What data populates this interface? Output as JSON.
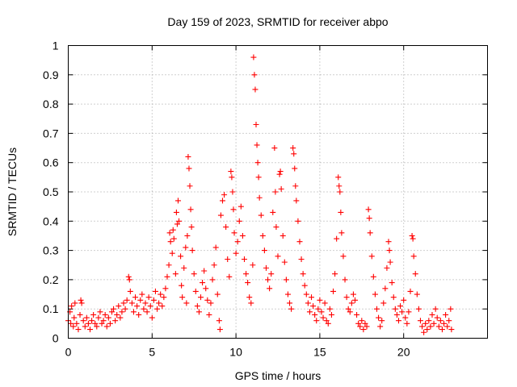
{
  "chart_data": {
    "type": "scatter",
    "title": "Day 159 of 2023, SRMTID for receiver abpo",
    "xlabel": "GPS time / hours",
    "ylabel": "SRMTID / TECUs",
    "xlim": [
      0,
      25
    ],
    "ylim": [
      0,
      1
    ],
    "xticks": [
      0,
      5,
      10,
      15,
      20
    ],
    "xtick_labels": [
      "0",
      "5",
      "10",
      "15",
      "20"
    ],
    "yticks": [
      0,
      0.1,
      0.2,
      0.3,
      0.4,
      0.5,
      0.6,
      0.7,
      0.8,
      0.9,
      1
    ],
    "ytick_labels": [
      "0",
      "0.1",
      "0.2",
      "0.3",
      "0.4",
      "0.5",
      "0.6",
      "0.7",
      "0.8",
      "0.9",
      "1"
    ],
    "grid": true,
    "marker": "plus",
    "series": [
      {
        "name": "SRMTID",
        "color": "#ff0000",
        "points": [
          [
            0.0,
            0.06
          ],
          [
            0.1,
            0.09
          ],
          [
            0.15,
            0.05
          ],
          [
            0.2,
            0.11
          ],
          [
            0.3,
            0.04
          ],
          [
            0.35,
            0.07
          ],
          [
            0.4,
            0.12
          ],
          [
            0.5,
            0.05
          ],
          [
            0.6,
            0.03
          ],
          [
            0.7,
            0.08
          ],
          [
            0.75,
            0.13
          ],
          [
            0.8,
            0.12
          ],
          [
            0.9,
            0.06
          ],
          [
            1.0,
            0.04
          ],
          [
            1.1,
            0.07
          ],
          [
            1.2,
            0.05
          ],
          [
            1.3,
            0.03
          ],
          [
            1.4,
            0.06
          ],
          [
            1.5,
            0.08
          ],
          [
            1.6,
            0.05
          ],
          [
            1.7,
            0.04
          ],
          [
            1.8,
            0.07
          ],
          [
            1.9,
            0.09
          ],
          [
            2.0,
            0.05
          ],
          [
            2.1,
            0.06
          ],
          [
            2.2,
            0.08
          ],
          [
            2.3,
            0.04
          ],
          [
            2.4,
            0.07
          ],
          [
            2.5,
            0.05
          ],
          [
            2.6,
            0.09
          ],
          [
            2.7,
            0.1
          ],
          [
            2.8,
            0.06
          ],
          [
            2.9,
            0.08
          ],
          [
            3.0,
            0.11
          ],
          [
            3.1,
            0.07
          ],
          [
            3.2,
            0.09
          ],
          [
            3.3,
            0.12
          ],
          [
            3.4,
            0.1
          ],
          [
            3.5,
            0.13
          ],
          [
            3.6,
            0.21
          ],
          [
            3.65,
            0.2
          ],
          [
            3.7,
            0.16
          ],
          [
            3.8,
            0.12
          ],
          [
            3.9,
            0.09
          ],
          [
            4.0,
            0.14
          ],
          [
            4.1,
            0.11
          ],
          [
            4.2,
            0.08
          ],
          [
            4.3,
            0.13
          ],
          [
            4.4,
            0.15
          ],
          [
            4.5,
            0.1
          ],
          [
            4.6,
            0.12
          ],
          [
            4.7,
            0.09
          ],
          [
            4.8,
            0.14
          ],
          [
            4.9,
            0.11
          ],
          [
            5.0,
            0.07
          ],
          [
            5.1,
            0.13
          ],
          [
            5.2,
            0.16
          ],
          [
            5.3,
            0.1
          ],
          [
            5.4,
            0.12
          ],
          [
            5.5,
            0.15
          ],
          [
            5.6,
            0.11
          ],
          [
            5.7,
            0.14
          ],
          [
            5.8,
            0.17
          ],
          [
            5.9,
            0.21
          ],
          [
            6.0,
            0.25
          ],
          [
            6.05,
            0.36
          ],
          [
            6.1,
            0.33
          ],
          [
            6.2,
            0.29
          ],
          [
            6.25,
            0.37
          ],
          [
            6.3,
            0.34
          ],
          [
            6.4,
            0.22
          ],
          [
            6.45,
            0.43
          ],
          [
            6.5,
            0.39
          ],
          [
            6.55,
            0.47
          ],
          [
            6.6,
            0.4
          ],
          [
            6.7,
            0.28
          ],
          [
            6.75,
            0.18
          ],
          [
            6.8,
            0.14
          ],
          [
            6.9,
            0.24
          ],
          [
            7.0,
            0.31
          ],
          [
            7.05,
            0.12
          ],
          [
            7.1,
            0.35
          ],
          [
            7.15,
            0.62
          ],
          [
            7.2,
            0.58
          ],
          [
            7.25,
            0.52
          ],
          [
            7.3,
            0.44
          ],
          [
            7.35,
            0.38
          ],
          [
            7.4,
            0.3
          ],
          [
            7.5,
            0.22
          ],
          [
            7.6,
            0.16
          ],
          [
            7.7,
            0.11
          ],
          [
            7.8,
            0.09
          ],
          [
            7.9,
            0.14
          ],
          [
            8.0,
            0.19
          ],
          [
            8.1,
            0.23
          ],
          [
            8.2,
            0.17
          ],
          [
            8.3,
            0.13
          ],
          [
            8.4,
            0.08
          ],
          [
            8.5,
            0.12
          ],
          [
            8.6,
            0.2
          ],
          [
            8.7,
            0.25
          ],
          [
            8.8,
            0.31
          ],
          [
            8.9,
            0.15
          ],
          [
            9.0,
            0.06
          ],
          [
            9.05,
            0.03
          ],
          [
            9.1,
            0.42
          ],
          [
            9.2,
            0.47
          ],
          [
            9.3,
            0.49
          ],
          [
            9.4,
            0.38
          ],
          [
            9.5,
            0.27
          ],
          [
            9.6,
            0.21
          ],
          [
            9.7,
            0.57
          ],
          [
            9.75,
            0.55
          ],
          [
            9.8,
            0.5
          ],
          [
            9.85,
            0.44
          ],
          [
            9.9,
            0.36
          ],
          [
            10.0,
            0.29
          ],
          [
            10.1,
            0.33
          ],
          [
            10.2,
            0.4
          ],
          [
            10.3,
            0.45
          ],
          [
            10.4,
            0.35
          ],
          [
            10.5,
            0.27
          ],
          [
            10.6,
            0.22
          ],
          [
            10.7,
            0.19
          ],
          [
            10.8,
            0.14
          ],
          [
            10.9,
            0.12
          ],
          [
            11.0,
            0.25
          ],
          [
            11.05,
            0.96
          ],
          [
            11.1,
            0.9
          ],
          [
            11.15,
            0.85
          ],
          [
            11.2,
            0.73
          ],
          [
            11.25,
            0.66
          ],
          [
            11.3,
            0.6
          ],
          [
            11.35,
            0.55
          ],
          [
            11.4,
            0.48
          ],
          [
            11.5,
            0.42
          ],
          [
            11.6,
            0.35
          ],
          [
            11.7,
            0.3
          ],
          [
            11.8,
            0.24
          ],
          [
            11.9,
            0.2
          ],
          [
            12.0,
            0.17
          ],
          [
            12.1,
            0.22
          ],
          [
            12.2,
            0.43
          ],
          [
            12.3,
            0.65
          ],
          [
            12.35,
            0.5
          ],
          [
            12.4,
            0.38
          ],
          [
            12.5,
            0.28
          ],
          [
            12.6,
            0.56
          ],
          [
            12.65,
            0.57
          ],
          [
            12.7,
            0.51
          ],
          [
            12.8,
            0.35
          ],
          [
            12.9,
            0.26
          ],
          [
            13.0,
            0.2
          ],
          [
            13.1,
            0.15
          ],
          [
            13.2,
            0.12
          ],
          [
            13.3,
            0.1
          ],
          [
            13.4,
            0.65
          ],
          [
            13.45,
            0.63
          ],
          [
            13.5,
            0.58
          ],
          [
            13.55,
            0.52
          ],
          [
            13.6,
            0.47
          ],
          [
            13.7,
            0.4
          ],
          [
            13.8,
            0.33
          ],
          [
            13.9,
            0.27
          ],
          [
            14.0,
            0.22
          ],
          [
            14.1,
            0.18
          ],
          [
            14.2,
            0.15
          ],
          [
            14.3,
            0.12
          ],
          [
            14.4,
            0.09
          ],
          [
            14.5,
            0.14
          ],
          [
            14.6,
            0.11
          ],
          [
            14.7,
            0.08
          ],
          [
            14.8,
            0.06
          ],
          [
            14.9,
            0.1
          ],
          [
            15.0,
            0.13
          ],
          [
            15.1,
            0.09
          ],
          [
            15.2,
            0.07
          ],
          [
            15.3,
            0.12
          ],
          [
            15.4,
            0.06
          ],
          [
            15.5,
            0.05
          ],
          [
            15.6,
            0.1
          ],
          [
            15.7,
            0.08
          ],
          [
            15.8,
            0.16
          ],
          [
            15.9,
            0.22
          ],
          [
            16.0,
            0.34
          ],
          [
            16.1,
            0.55
          ],
          [
            16.15,
            0.52
          ],
          [
            16.2,
            0.5
          ],
          [
            16.25,
            0.43
          ],
          [
            16.3,
            0.36
          ],
          [
            16.4,
            0.28
          ],
          [
            16.5,
            0.2
          ],
          [
            16.6,
            0.14
          ],
          [
            16.7,
            0.1
          ],
          [
            16.8,
            0.09
          ],
          [
            16.9,
            0.12
          ],
          [
            17.0,
            0.15
          ],
          [
            17.1,
            0.13
          ],
          [
            17.2,
            0.08
          ],
          [
            17.3,
            0.05
          ],
          [
            17.4,
            0.04
          ],
          [
            17.5,
            0.06
          ],
          [
            17.6,
            0.03
          ],
          [
            17.7,
            0.05
          ],
          [
            17.8,
            0.04
          ],
          [
            17.9,
            0.44
          ],
          [
            17.95,
            0.41
          ],
          [
            18.0,
            0.36
          ],
          [
            18.1,
            0.28
          ],
          [
            18.2,
            0.21
          ],
          [
            18.3,
            0.15
          ],
          [
            18.4,
            0.1
          ],
          [
            18.5,
            0.07
          ],
          [
            18.6,
            0.04
          ],
          [
            18.7,
            0.06
          ],
          [
            18.8,
            0.12
          ],
          [
            18.9,
            0.17
          ],
          [
            19.0,
            0.24
          ],
          [
            19.1,
            0.33
          ],
          [
            19.15,
            0.3
          ],
          [
            19.2,
            0.26
          ],
          [
            19.3,
            0.19
          ],
          [
            19.4,
            0.14
          ],
          [
            19.5,
            0.1
          ],
          [
            19.6,
            0.08
          ],
          [
            19.7,
            0.06
          ],
          [
            19.8,
            0.11
          ],
          [
            19.9,
            0.09
          ],
          [
            20.0,
            0.13
          ],
          [
            20.1,
            0.07
          ],
          [
            20.2,
            0.05
          ],
          [
            20.3,
            0.09
          ],
          [
            20.4,
            0.16
          ],
          [
            20.5,
            0.35
          ],
          [
            20.55,
            0.34
          ],
          [
            20.6,
            0.28
          ],
          [
            20.7,
            0.22
          ],
          [
            20.8,
            0.15
          ],
          [
            20.9,
            0.1
          ],
          [
            21.0,
            0.06
          ],
          [
            21.1,
            0.04
          ],
          [
            21.2,
            0.02
          ],
          [
            21.3,
            0.05
          ],
          [
            21.4,
            0.03
          ],
          [
            21.5,
            0.06
          ],
          [
            21.6,
            0.04
          ],
          [
            21.7,
            0.08
          ],
          [
            21.8,
            0.05
          ],
          [
            21.9,
            0.1
          ],
          [
            22.0,
            0.07
          ],
          [
            22.1,
            0.04
          ],
          [
            22.2,
            0.06
          ],
          [
            22.3,
            0.03
          ],
          [
            22.4,
            0.05
          ],
          [
            22.5,
            0.08
          ],
          [
            22.6,
            0.04
          ],
          [
            22.7,
            0.06
          ],
          [
            22.8,
            0.1
          ],
          [
            22.85,
            0.03
          ]
        ]
      }
    ]
  }
}
